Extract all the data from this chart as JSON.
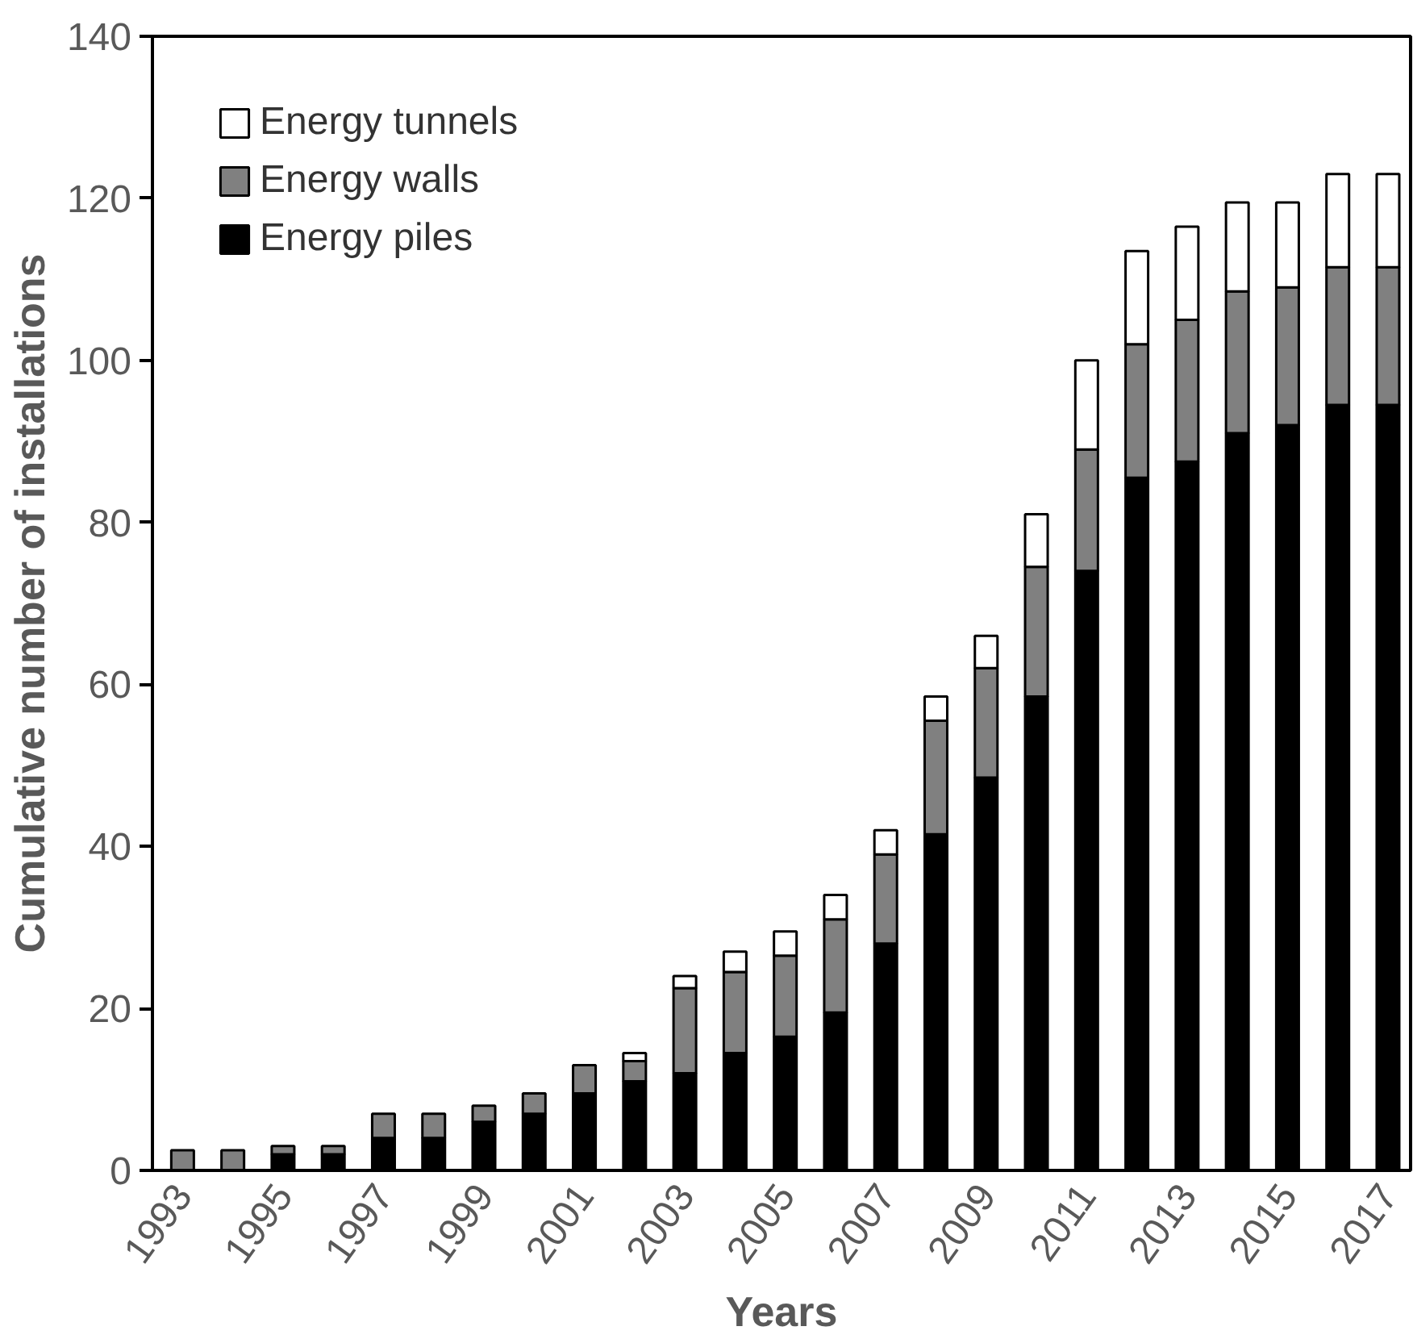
{
  "chart_data": {
    "type": "bar",
    "stacked": true,
    "xlabel": "Years",
    "ylabel": "Cumulative number of installations",
    "categories": [
      "1993",
      null,
      "1995",
      null,
      "1997",
      null,
      "1999",
      null,
      "2001",
      null,
      "2003",
      null,
      "2005",
      null,
      "2007",
      null,
      "2009",
      null,
      "2011",
      null,
      "2013",
      null,
      "2015",
      null,
      "2017"
    ],
    "series": [
      {
        "name": "Energy piles",
        "color": "#000000",
        "values": [
          null,
          null,
          2,
          2,
          4,
          4,
          6,
          7,
          9.5,
          11,
          12,
          14.5,
          16.5,
          19.5,
          28,
          41.5,
          48.5,
          58.5,
          74,
          85.5,
          87.5,
          91,
          92,
          94.5,
          94.5
        ]
      },
      {
        "name": "Energy walls",
        "color": "#808080",
        "values": [
          2.5,
          2.5,
          1,
          1,
          3,
          3,
          2,
          2.5,
          3.5,
          2.5,
          10.5,
          10,
          10,
          11.5,
          11,
          14,
          13.5,
          16,
          15,
          16.5,
          17.5,
          17.5,
          17,
          17,
          17
        ]
      },
      {
        "name": "Energy tunnels",
        "color": "#ffffff",
        "values": [
          null,
          null,
          null,
          null,
          null,
          null,
          null,
          null,
          null,
          1,
          1.5,
          2.5,
          3,
          3,
          3,
          3,
          4,
          6.5,
          11,
          11.5,
          11.5,
          11,
          10.5,
          11.5,
          11.5
        ]
      }
    ],
    "ylim": [
      0,
      140
    ],
    "yticks": [
      0,
      20,
      40,
      60,
      80,
      100,
      120,
      140
    ],
    "grid": false,
    "legend": "top left"
  }
}
